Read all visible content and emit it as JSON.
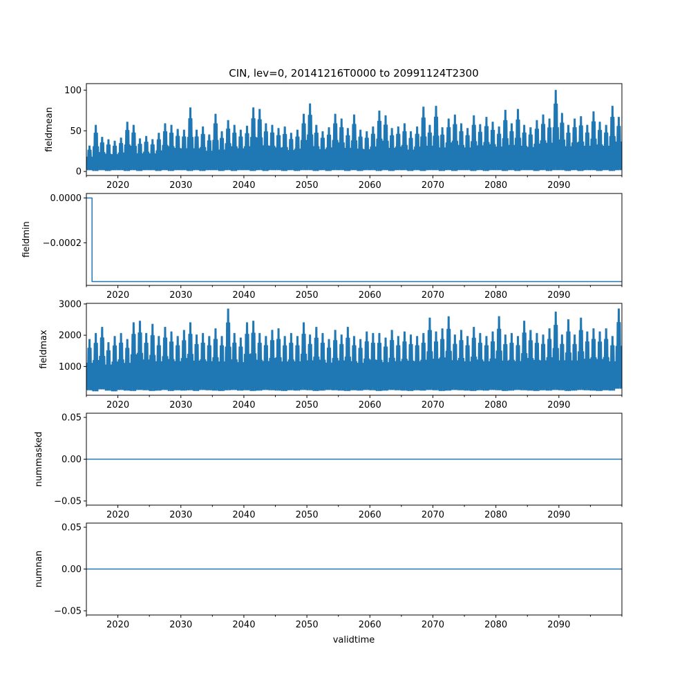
{
  "title": "CIN, lev=0, 20141216T0000 to 20991124T2300",
  "xlabel": "validtime",
  "x_tick_labels": [
    "2020",
    "2030",
    "2040",
    "2050",
    "2060",
    "2070",
    "2080",
    "2090"
  ],
  "series_color": "#1f77b4",
  "chart_data": [
    {
      "type": "line",
      "ylabel": "fieldmean",
      "xlim": [
        2015.0,
        2100.0
      ],
      "ylim": [
        -5,
        108
      ],
      "yticks": [
        0,
        50,
        100
      ],
      "ytick_labels": [
        "0",
        "50",
        "100"
      ],
      "x": [
        2015.0,
        2016.0,
        2017.0,
        2018.0,
        2019.0,
        2020.0,
        2021.0,
        2022.0,
        2023.0,
        2024.0,
        2025.0,
        2026.0,
        2027.0,
        2028.0,
        2029.0,
        2030.0,
        2031.0,
        2032.0,
        2033.0,
        2034.0,
        2035.0,
        2036.0,
        2037.0,
        2038.0,
        2039.0,
        2040.0,
        2041.0,
        2042.0,
        2043.0,
        2044.0,
        2045.0,
        2046.0,
        2047.0,
        2048.0,
        2049.0,
        2050.0,
        2051.0,
        2052.0,
        2053.0,
        2054.0,
        2055.0,
        2056.0,
        2057.0,
        2058.0,
        2059.0,
        2060.0,
        2061.0,
        2062.0,
        2063.0,
        2064.0,
        2065.0,
        2066.0,
        2067.0,
        2068.0,
        2069.0,
        2070.0,
        2071.0,
        2072.0,
        2073.0,
        2074.0,
        2075.0,
        2076.0,
        2077.0,
        2078.0,
        2079.0,
        2080.0,
        2081.0,
        2082.0,
        2083.0,
        2084.0,
        2085.0,
        2086.0,
        2087.0,
        2088.0,
        2089.0,
        2090.0,
        2091.0,
        2092.0,
        2093.0,
        2094.0,
        2095.0,
        2096.0,
        2097.0,
        2098.0,
        2099.0
      ],
      "ymax": [
        32,
        58,
        43,
        40,
        38,
        42,
        62,
        58,
        41,
        44,
        40,
        48,
        60,
        58,
        53,
        52,
        80,
        52,
        56,
        46,
        72,
        50,
        64,
        58,
        52,
        57,
        80,
        78,
        60,
        58,
        54,
        56,
        48,
        52,
        72,
        85,
        58,
        50,
        55,
        72,
        66,
        54,
        71,
        52,
        50,
        56,
        76,
        70,
        54,
        56,
        60,
        50,
        56,
        81,
        58,
        82,
        55,
        66,
        71,
        60,
        54,
        70,
        59,
        68,
        62,
        56,
        77,
        60,
        78,
        58,
        55,
        64,
        71,
        66,
        102,
        73,
        58,
        66,
        69,
        58,
        75,
        62,
        58,
        82,
        68
      ],
      "ymin": [
        2,
        1,
        2,
        1,
        2,
        2,
        1,
        2,
        1,
        2,
        2,
        1,
        2,
        1,
        2,
        2,
        1,
        2,
        1,
        2,
        2,
        1,
        2,
        1,
        2,
        2,
        1,
        2,
        1,
        2,
        2,
        1,
        2,
        1,
        2,
        2,
        1,
        2,
        1,
        2,
        2,
        1,
        2,
        1,
        2,
        2,
        1,
        2,
        1,
        2,
        2,
        1,
        2,
        1,
        2,
        2,
        1,
        2,
        1,
        2,
        2,
        1,
        2,
        1,
        2,
        2,
        1,
        2,
        1,
        2,
        2,
        1,
        2,
        1,
        2,
        2,
        1,
        2,
        1,
        2,
        2,
        1,
        2,
        1,
        2
      ]
    },
    {
      "type": "line",
      "ylabel": "fieldmin",
      "xlim": [
        2015.0,
        2100.0
      ],
      "ylim": [
        -0.00039,
        2e-05
      ],
      "yticks": [
        0.0,
        -0.0002
      ],
      "ytick_labels": [
        "0.0000",
        "−0.0002"
      ],
      "x": [
        2015.0,
        2015.9,
        2015.9,
        2100.0
      ],
      "y": [
        0.0,
        0.0,
        -0.000373,
        -0.000373
      ]
    },
    {
      "type": "line",
      "ylabel": "fieldmax",
      "xlim": [
        2015.0,
        2100.0
      ],
      "ylim": [
        80,
        3020
      ],
      "yticks": [
        1000,
        2000,
        3000
      ],
      "ytick_labels": [
        "1000",
        "2000",
        "3000"
      ],
      "x": [
        2015.0,
        2016.0,
        2017.0,
        2018.0,
        2019.0,
        2020.0,
        2021.0,
        2022.0,
        2023.0,
        2024.0,
        2025.0,
        2026.0,
        2027.0,
        2028.0,
        2029.0,
        2030.0,
        2031.0,
        2032.0,
        2033.0,
        2034.0,
        2035.0,
        2036.0,
        2037.0,
        2038.0,
        2039.0,
        2040.0,
        2041.0,
        2042.0,
        2043.0,
        2044.0,
        2045.0,
        2046.0,
        2047.0,
        2048.0,
        2049.0,
        2050.0,
        2051.0,
        2052.0,
        2053.0,
        2054.0,
        2055.0,
        2056.0,
        2057.0,
        2058.0,
        2059.0,
        2060.0,
        2061.0,
        2062.0,
        2063.0,
        2064.0,
        2065.0,
        2066.0,
        2067.0,
        2068.0,
        2069.0,
        2070.0,
        2071.0,
        2072.0,
        2073.0,
        2074.0,
        2075.0,
        2076.0,
        2077.0,
        2078.0,
        2079.0,
        2080.0,
        2081.0,
        2082.0,
        2083.0,
        2084.0,
        2085.0,
        2086.0,
        2087.0,
        2088.0,
        2089.0,
        2090.0,
        2091.0,
        2092.0,
        2093.0,
        2094.0,
        2095.0,
        2096.0,
        2097.0,
        2098.0,
        2099.0
      ],
      "ymax": [
        1900,
        2100,
        2300,
        1800,
        2000,
        2100,
        1900,
        2450,
        2500,
        2100,
        2400,
        2000,
        2300,
        2150,
        2000,
        2200,
        2450,
        2050,
        2100,
        2000,
        2250,
        2000,
        2900,
        2100,
        1950,
        2450,
        2500,
        2100,
        2000,
        2200,
        2250,
        2000,
        2100,
        2000,
        2450,
        2050,
        2300,
        2100,
        1900,
        2200,
        2050,
        2300,
        2000,
        1900,
        2150,
        2100,
        2100,
        1950,
        2200,
        2000,
        2150,
        2050,
        2000,
        2100,
        2600,
        2150,
        2250,
        2650,
        2050,
        2200,
        2000,
        2300,
        2100,
        2000,
        2150,
        2650,
        2050,
        2100,
        2000,
        2500,
        2200,
        2100,
        2050,
        2250,
        2800,
        2050,
        2550,
        2050,
        2600,
        2150,
        2250,
        2150,
        2250,
        2000,
        2900
      ],
      "ymin": [
        250,
        220,
        280,
        240,
        220,
        260,
        240,
        230,
        260,
        250,
        230,
        240,
        260,
        230,
        250,
        240,
        250,
        230,
        260,
        250,
        240,
        230,
        250,
        260,
        240,
        250,
        230,
        240,
        260,
        250,
        240,
        230,
        250,
        240,
        260,
        250,
        230,
        240,
        260,
        250,
        240,
        230,
        250,
        240,
        260,
        250,
        230,
        240,
        260,
        250,
        240,
        230,
        250,
        240,
        260,
        250,
        230,
        240,
        260,
        250,
        240,
        230,
        250,
        240,
        260,
        250,
        230,
        240,
        260,
        250,
        240,
        230,
        250,
        240,
        260,
        250,
        230,
        240,
        260,
        250,
        240,
        230,
        250,
        240,
        300
      ]
    },
    {
      "type": "line",
      "ylabel": "nummasked",
      "xlim": [
        2015.0,
        2100.0
      ],
      "ylim": [
        -0.055,
        0.055
      ],
      "yticks": [
        0.05,
        0.0,
        -0.05
      ],
      "ytick_labels": [
        "0.05",
        "0.00",
        "−0.05"
      ],
      "x": [
        2015.0,
        2100.0
      ],
      "y": [
        0.0,
        0.0
      ]
    },
    {
      "type": "line",
      "ylabel": "numnan",
      "xlim": [
        2015.0,
        2100.0
      ],
      "ylim": [
        -0.055,
        0.055
      ],
      "yticks": [
        0.05,
        0.0,
        -0.05
      ],
      "ytick_labels": [
        "0.05",
        "0.00",
        "−0.05"
      ],
      "x": [
        2015.0,
        2100.0
      ],
      "y": [
        0.0,
        0.0
      ]
    }
  ]
}
